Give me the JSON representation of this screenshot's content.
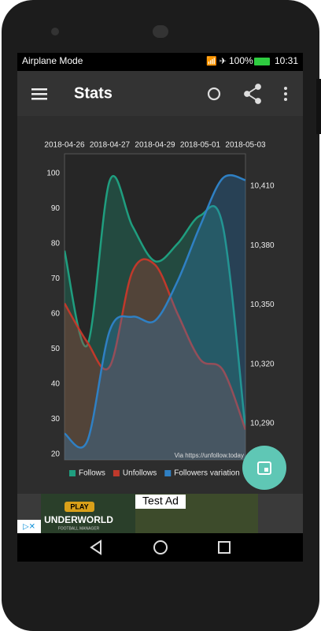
{
  "status_bar": {
    "left": "Airplane Mode",
    "battery": "100%",
    "time": "10:31"
  },
  "app_bar": {
    "title": "Stats"
  },
  "chart_data": {
    "type": "line",
    "area": true,
    "categories": [
      "2018-04-26",
      null,
      "2018-04-27",
      null,
      "2018-04-29",
      null,
      "2018-05-01",
      null,
      "2018-05-03"
    ],
    "series": [
      {
        "name": "Follows",
        "color": "#1f9e7f",
        "values": [
          78,
          51,
          98,
          85,
          75,
          80,
          88,
          85,
          27
        ]
      },
      {
        "name": "Unfollows",
        "color": "#c0392b",
        "values": [
          63,
          52,
          45,
          72,
          74,
          60,
          47,
          44,
          27
        ]
      },
      {
        "name": "Followers variation",
        "color": "#2f80c4",
        "axis": "y2",
        "values": [
          10285,
          10281,
          10337,
          10344,
          10342,
          10362,
          10390,
          10414,
          10413
        ]
      }
    ],
    "ylim": [
      18.4,
      105.6
    ],
    "yticks": [
      20,
      30,
      40,
      50,
      60,
      70,
      80,
      90,
      100
    ],
    "y2lim": [
      10271.7,
      10426.3
    ],
    "y2ticks": [
      {
        "value": 10290,
        "label": "10,290"
      },
      {
        "value": 10320,
        "label": "10,320"
      },
      {
        "value": 10350,
        "label": "10,350"
      },
      {
        "value": 10380,
        "label": "10,380"
      },
      {
        "value": 10410,
        "label": "10,410"
      }
    ],
    "watermark": "Via https://unfollow.today"
  },
  "ad": {
    "label": "Test Ad",
    "button": "PLAY",
    "game": "UNDERWORLD",
    "subtitle": "FOOTBALL MANAGER"
  }
}
